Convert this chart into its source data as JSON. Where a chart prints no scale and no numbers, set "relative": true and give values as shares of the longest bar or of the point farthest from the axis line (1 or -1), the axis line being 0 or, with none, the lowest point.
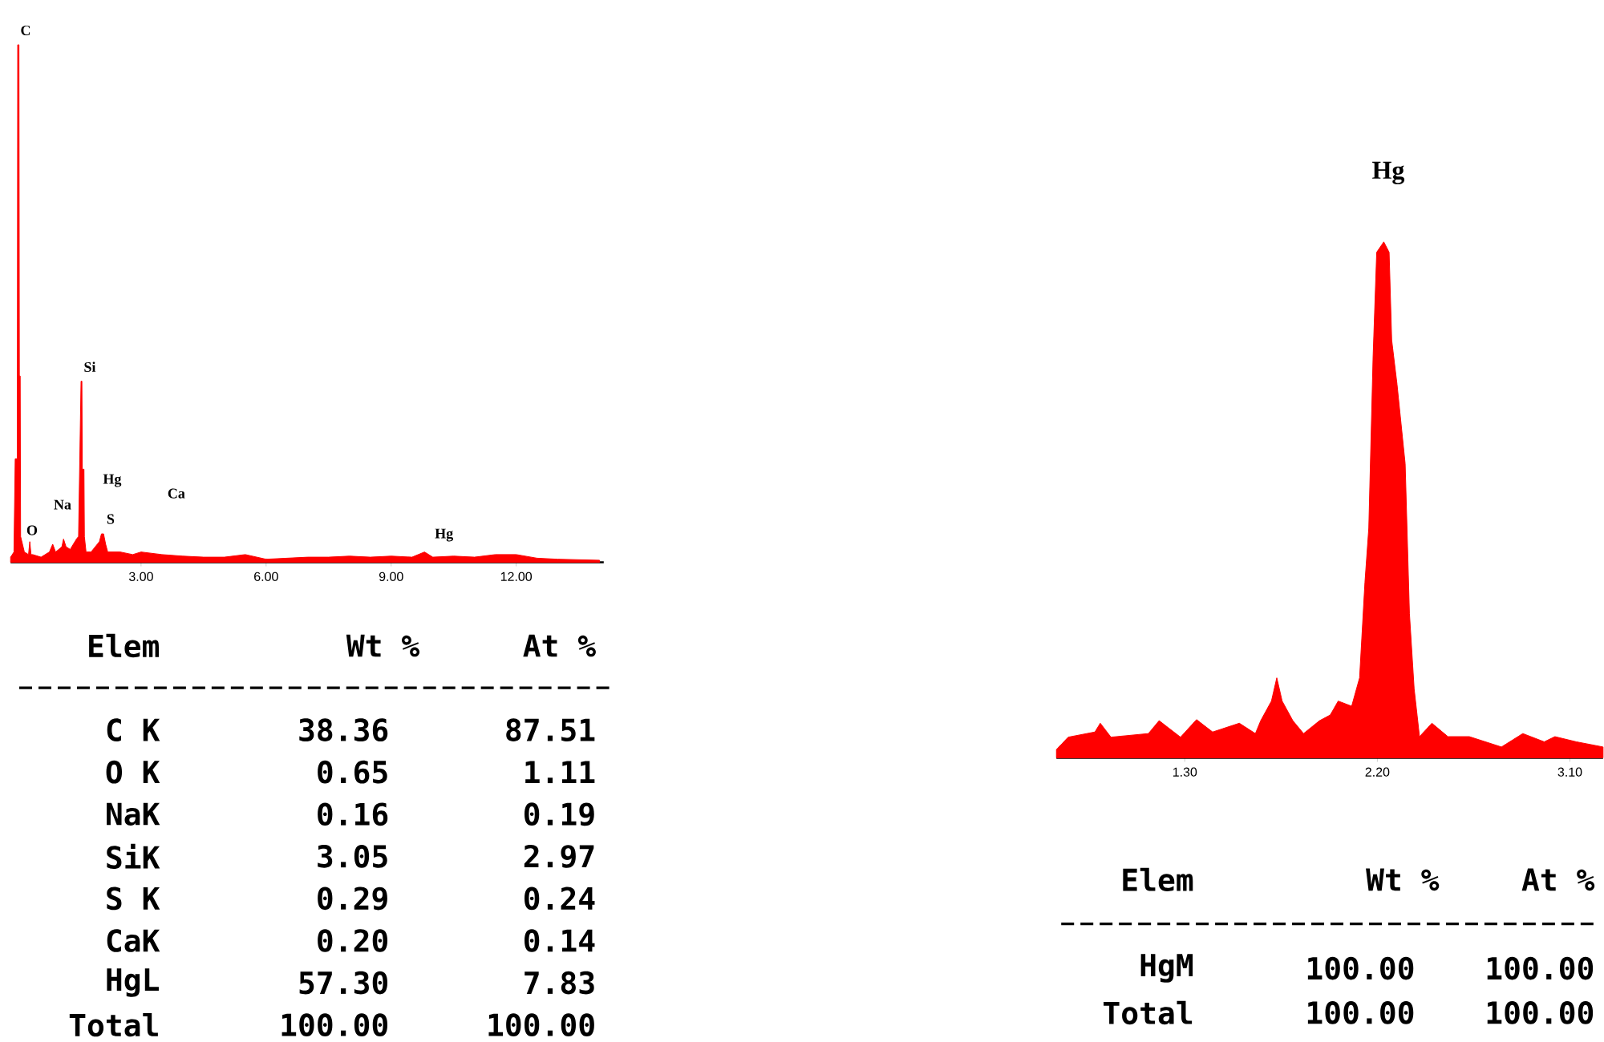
{
  "chart_data": [
    {
      "type": "area",
      "relative": true,
      "color": "#ff0000",
      "xlim": [
        -0.13,
        14.1
      ],
      "xticks": [
        {
          "value": 3,
          "label": "3.00"
        },
        {
          "value": 6,
          "label": "6.00"
        },
        {
          "value": 9,
          "label": "9.00"
        },
        {
          "value": 12,
          "label": "12.00"
        }
      ],
      "x": [
        -0.13,
        -0.05,
        -0.02,
        0.0,
        0.03,
        0.04,
        0.07,
        0.08,
        0.1,
        0.11,
        0.2,
        0.3,
        0.33,
        0.36,
        0.4,
        0.6,
        0.8,
        0.88,
        0.95,
        1.1,
        1.14,
        1.2,
        1.3,
        1.45,
        1.5,
        1.53,
        1.56,
        1.58,
        1.59,
        1.63,
        1.64,
        1.68,
        1.8,
        1.9,
        2.0,
        2.05,
        2.1,
        2.15,
        2.2,
        2.5,
        2.8,
        3.0,
        3.5,
        4.0,
        4.5,
        5.0,
        5.5,
        6.0,
        6.5,
        7.0,
        7.5,
        8.0,
        8.5,
        9.0,
        9.5,
        9.8,
        10.0,
        10.5,
        11.0,
        11.5,
        12.0,
        12.5,
        13.0,
        13.5,
        14.0
      ],
      "values": [
        0.01,
        0.02,
        0.2,
        0.2,
        0.2,
        1.0,
        1.0,
        0.36,
        0.36,
        0.05,
        0.02,
        0.015,
        0.04,
        0.015,
        0.015,
        0.01,
        0.02,
        0.035,
        0.02,
        0.03,
        0.045,
        0.03,
        0.025,
        0.045,
        0.05,
        0.2,
        0.35,
        0.35,
        0.18,
        0.18,
        0.05,
        0.02,
        0.02,
        0.03,
        0.04,
        0.055,
        0.055,
        0.035,
        0.02,
        0.02,
        0.015,
        0.02,
        0.015,
        0.012,
        0.01,
        0.01,
        0.015,
        0.006,
        0.008,
        0.01,
        0.01,
        0.012,
        0.01,
        0.012,
        0.01,
        0.02,
        0.01,
        0.012,
        0.01,
        0.015,
        0.015,
        0.008,
        0.006,
        0.005,
        0.004
      ],
      "annotations": [
        "C",
        "O",
        "Na",
        "Si",
        "Hg",
        "S",
        "Ca",
        "Hg"
      ]
    },
    {
      "type": "other",
      "annotations": [
        "Elem",
        "Wt %",
        "At %",
        "C K",
        "38.36",
        "87.51",
        "O K",
        "0.65",
        "1.11",
        "NaK",
        "0.16",
        "0.19",
        "SiK",
        "3.05",
        "2.97",
        "S K",
        "0.29",
        "0.24",
        "CaK",
        "0.20",
        "0.14",
        "HgL",
        "57.30",
        "7.83",
        "Total",
        "100.00",
        "100.00"
      ]
    },
    {
      "type": "area",
      "relative": true,
      "color": "#ff0000",
      "xlim": [
        0.7,
        3.255
      ],
      "xticks": [
        {
          "value": 1.3,
          "label": "1.30"
        },
        {
          "value": 2.2,
          "label": "2.20"
        },
        {
          "value": 3.1,
          "label": "3.10"
        }
      ],
      "x": [
        0.7,
        0.755,
        0.88,
        0.905,
        0.955,
        1.13,
        1.18,
        1.28,
        1.355,
        1.43,
        1.555,
        1.63,
        1.655,
        1.705,
        1.73,
        1.755,
        1.805,
        1.855,
        1.93,
        1.98,
        2.017,
        2.08,
        2.117,
        2.142,
        2.16,
        2.18,
        2.197,
        2.23,
        2.255,
        2.267,
        2.292,
        2.33,
        2.35,
        2.372,
        2.397,
        2.455,
        2.53,
        2.63,
        2.78,
        2.88,
        2.98,
        3.03,
        3.13,
        3.255
      ],
      "values": [
        0.016,
        0.04,
        0.05,
        0.067,
        0.04,
        0.047,
        0.072,
        0.04,
        0.074,
        0.05,
        0.067,
        0.047,
        0.072,
        0.11,
        0.155,
        0.11,
        0.072,
        0.047,
        0.072,
        0.083,
        0.11,
        0.1,
        0.155,
        0.34,
        0.445,
        0.776,
        0.98,
        1.0,
        0.98,
        0.81,
        0.724,
        0.57,
        0.28,
        0.134,
        0.041,
        0.067,
        0.041,
        0.041,
        0.021,
        0.047,
        0.031,
        0.041,
        0.031,
        0.021
      ],
      "annotations": [
        "Hg"
      ]
    },
    {
      "type": "other",
      "annotations": [
        "Elem",
        "Wt %",
        "At %",
        "HgM",
        "100.00",
        "100.00",
        "Total",
        "100.00",
        "100.00"
      ]
    }
  ]
}
